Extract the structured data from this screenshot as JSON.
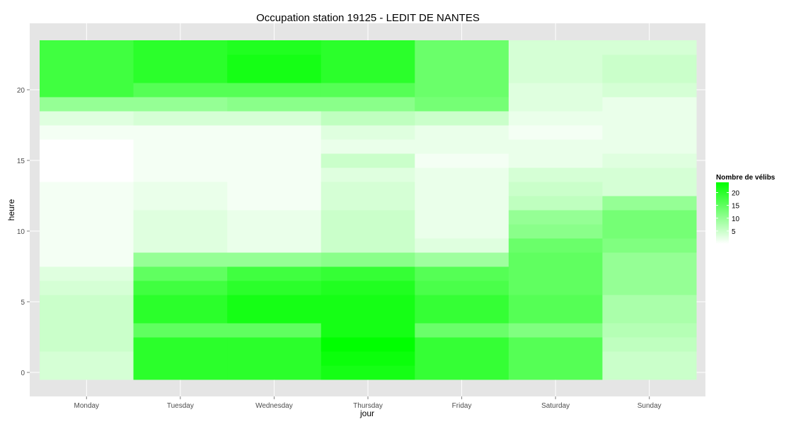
{
  "chart_data": {
    "type": "heatmap",
    "title": "Occupation station 19125 - LEDIT DE NANTES",
    "xlabel": "jour",
    "ylabel": "heure",
    "days": [
      "Monday",
      "Tuesday",
      "Wednesday",
      "Thursday",
      "Friday",
      "Saturday",
      "Sunday"
    ],
    "hours": [
      0,
      1,
      2,
      3,
      4,
      5,
      6,
      7,
      8,
      9,
      10,
      11,
      12,
      13,
      14,
      15,
      16,
      17,
      18,
      19,
      20,
      21,
      22,
      23
    ],
    "yticks": [
      0,
      5,
      10,
      15,
      20
    ],
    "ylim": [
      -0.5,
      23.5
    ],
    "values": [
      [
        4,
        20,
        20,
        22,
        19,
        16,
        5
      ],
      [
        4,
        20,
        20,
        23,
        19,
        16,
        5
      ],
      [
        5,
        20,
        20,
        24,
        19,
        16,
        6
      ],
      [
        5,
        15,
        15,
        22,
        14,
        12,
        7
      ],
      [
        5,
        20,
        22,
        22,
        19,
        16,
        8
      ],
      [
        5,
        20,
        22,
        22,
        19,
        16,
        8
      ],
      [
        4,
        18,
        20,
        21,
        17,
        15,
        10
      ],
      [
        3,
        15,
        18,
        19,
        16,
        15,
        10
      ],
      [
        1,
        10,
        10,
        11,
        9,
        15,
        10
      ],
      [
        1,
        3,
        2,
        5,
        3,
        14,
        12
      ],
      [
        1,
        3,
        2,
        5,
        2,
        11,
        13
      ],
      [
        1,
        3,
        2,
        5,
        2,
        10,
        13
      ],
      [
        1,
        2,
        1,
        4,
        2,
        6,
        10
      ],
      [
        1,
        2,
        1,
        4,
        2,
        5,
        4
      ],
      [
        0,
        1,
        1,
        3,
        2,
        4,
        4
      ],
      [
        0,
        1,
        1,
        5,
        1,
        2,
        3
      ],
      [
        0,
        1,
        1,
        2,
        2,
        2,
        2
      ],
      [
        1,
        1,
        1,
        3,
        2,
        1,
        2
      ],
      [
        3,
        4,
        4,
        6,
        5,
        2,
        2
      ],
      [
        10,
        10,
        11,
        11,
        13,
        3,
        2
      ],
      [
        18,
        16,
        16,
        16,
        14,
        3,
        4
      ],
      [
        18,
        20,
        22,
        20,
        14,
        4,
        5
      ],
      [
        18,
        20,
        22,
        20,
        14,
        4,
        5
      ],
      [
        18,
        20,
        21,
        20,
        14,
        4,
        4
      ]
    ],
    "legend": {
      "title": "Nombre de vélibs",
      "ticks": [
        5,
        10,
        15,
        20
      ],
      "range": [
        0,
        24
      ],
      "low_color": "#ffffff",
      "high_color": "#00ff00"
    },
    "colors": {
      "panel_background": "#e5e5e5",
      "grid_line": "#ffffff",
      "tick_text": "#4d4d4d"
    }
  }
}
